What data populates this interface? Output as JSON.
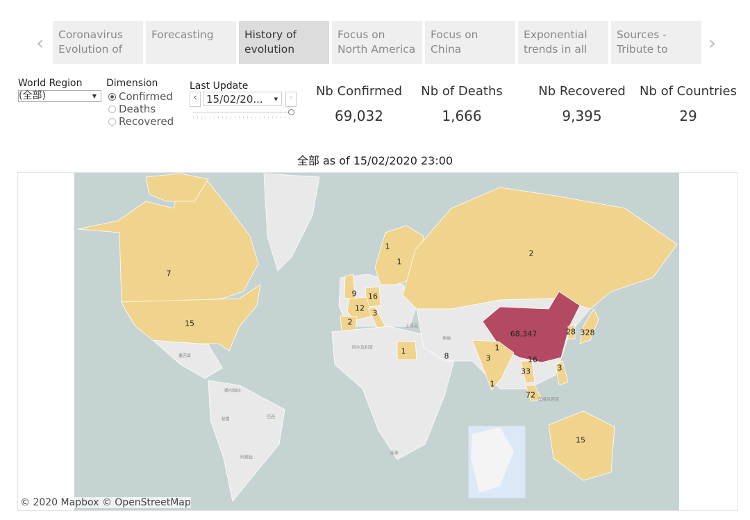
{
  "tabs": [
    {
      "label": "Coronavirus Evolution of",
      "active": false
    },
    {
      "label": "Forecasting",
      "active": false
    },
    {
      "label": "History of evolution",
      "active": true
    },
    {
      "label": "Focus on North America",
      "active": false
    },
    {
      "label": "Focus on China",
      "active": false
    },
    {
      "label": "Exponential trends in all",
      "active": false
    },
    {
      "label": "Sources - Tribute to",
      "active": false
    }
  ],
  "filters": {
    "world_region": {
      "label": "World Region",
      "value": "(全部)"
    },
    "dimension": {
      "label": "Dimension",
      "options": [
        "Confirmed",
        "Deaths",
        "Recovered"
      ],
      "selected": "Confirmed"
    },
    "last_update": {
      "label": "Last Update",
      "value": "15/02/20..."
    }
  },
  "kpis": [
    {
      "label": "Nb Confirmed",
      "value": "69,032"
    },
    {
      "label": "Nb of Deaths",
      "value": "1,666"
    },
    {
      "label": "Nb Recovered",
      "value": "9,395"
    },
    {
      "label": "Nb of Countries",
      "value": "29"
    }
  ],
  "map": {
    "title": "全部 as of 15/02/2020 23:00",
    "attribution": "© 2020 Mapbox © OpenStreetMap",
    "colors": {
      "ocean": "#c5d3d3",
      "land": "#e9e9e9",
      "low": "#f0d38c",
      "high": "#b34a62"
    },
    "values": [
      "7",
      "15",
      "1",
      "1",
      "2",
      "9",
      "16",
      "12",
      "3",
      "2",
      "1",
      "8",
      "68,347",
      "28",
      "328",
      "1",
      "3",
      "16",
      "3",
      "33",
      "1",
      "72",
      "15"
    ],
    "tile_labels": [
      "土耳其",
      "伊朗",
      "阿尔及利亚",
      "墨西哥",
      "委内瑞拉",
      "秘鲁",
      "巴西",
      "阿根廷",
      "南非",
      "印度尼西亚"
    ]
  }
}
